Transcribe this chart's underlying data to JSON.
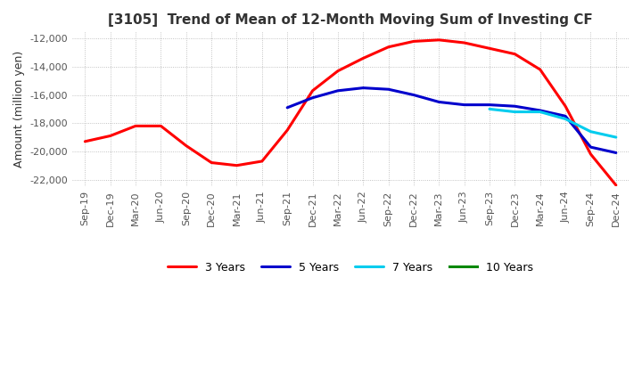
{
  "title": "[3105]  Trend of Mean of 12-Month Moving Sum of Investing CF",
  "ylabel": "Amount (million yen)",
  "ylim": [
    -22500,
    -11500
  ],
  "yticks": [
    -22000,
    -20000,
    -18000,
    -16000,
    -14000,
    -12000
  ],
  "background_color": "#ffffff",
  "grid_color": "#aaaaaa",
  "legend_labels": [
    "3 Years",
    "5 Years",
    "7 Years",
    "10 Years"
  ],
  "legend_colors": [
    "#ff0000",
    "#0000cc",
    "#00ccee",
    "#008800"
  ],
  "x_labels": [
    "Sep-19",
    "Dec-19",
    "Mar-20",
    "Jun-20",
    "Sep-20",
    "Dec-20",
    "Mar-21",
    "Jun-21",
    "Sep-21",
    "Dec-21",
    "Mar-22",
    "Jun-22",
    "Sep-22",
    "Dec-22",
    "Mar-23",
    "Jun-23",
    "Sep-23",
    "Dec-23",
    "Mar-24",
    "Jun-24",
    "Sep-24",
    "Dec-24"
  ],
  "series_3y": [
    -19300,
    -18900,
    -18200,
    -18200,
    -19600,
    -20800,
    -21000,
    -20700,
    -18500,
    -15700,
    -14300,
    -13400,
    -12600,
    -12200,
    -12100,
    -12300,
    -12700,
    -13100,
    -14200,
    -16800,
    -20200,
    -22400
  ],
  "series_5y": [
    null,
    null,
    null,
    null,
    null,
    null,
    null,
    null,
    -16900,
    -16200,
    -15700,
    -15500,
    -15600,
    -16000,
    -16500,
    -16700,
    -16700,
    -16800,
    -17100,
    -17500,
    -19700,
    -20100
  ],
  "series_7y": [
    null,
    null,
    null,
    null,
    null,
    null,
    null,
    null,
    null,
    null,
    null,
    null,
    null,
    null,
    null,
    null,
    -17000,
    -17200,
    -17200,
    -17700,
    -18600,
    -19000
  ],
  "series_10y": [
    null,
    null,
    null,
    null,
    null,
    null,
    null,
    null,
    null,
    null,
    null,
    null,
    null,
    null,
    null,
    null,
    null,
    null,
    null,
    null,
    null,
    null
  ]
}
